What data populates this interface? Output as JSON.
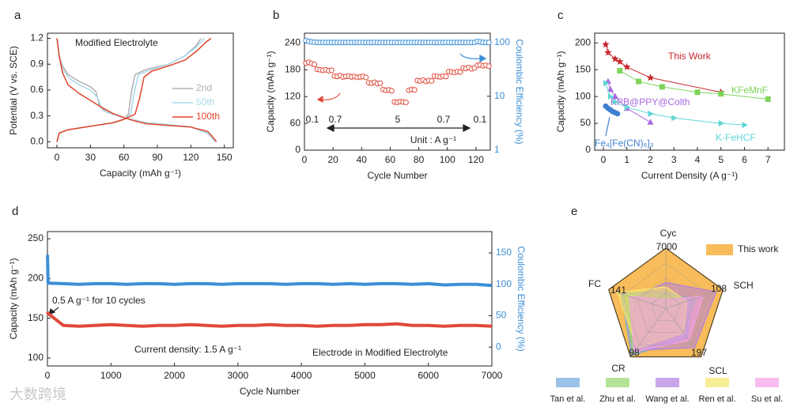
{
  "watermark": "大数跨境",
  "chart_data": [
    {
      "type": "line",
      "label": "a",
      "xlabel": "Capacity (mAh g⁻¹)",
      "ylabel": "Potential (V vs. SCE)",
      "annotations": [
        "Modified Electrolyte"
      ],
      "xlim": [
        -8.5,
        158
      ],
      "xticks": [
        0,
        30,
        60,
        90,
        120,
        150
      ],
      "ylim": [
        -0.07,
        1.26
      ],
      "yticks": [
        {
          "value": 0,
          "label": "0.0"
        },
        0.3,
        0.6,
        0.9,
        1.2
      ],
      "series": [
        {
          "name": "2nd",
          "color": "#b0b0b0",
          "x": [
            0,
            2,
            5,
            10,
            20,
            30,
            35,
            38,
            42,
            50,
            60,
            70,
            80,
            100,
            120,
            135,
            142,
            null,
            0,
            2,
            10,
            30,
            50,
            60,
            64,
            67,
            70,
            80,
            100,
            115,
            125,
            129
          ],
          "values": [
            1.2,
            1.0,
            0.88,
            0.78,
            0.7,
            0.64,
            0.58,
            0.42,
            0.36,
            0.32,
            0.28,
            0.25,
            0.22,
            0.2,
            0.17,
            0.1,
            0.0,
            null,
            0.0,
            0.1,
            0.14,
            0.18,
            0.22,
            0.26,
            0.32,
            0.6,
            0.78,
            0.84,
            0.9,
            1.0,
            1.12,
            1.2
          ]
        },
        {
          "name": "50th",
          "color": "#a8d8ea",
          "x": [
            0,
            2,
            5,
            10,
            20,
            30,
            36,
            40,
            45,
            55,
            65,
            80,
            100,
            120,
            135,
            142,
            null,
            0,
            2,
            10,
            30,
            50,
            60,
            66,
            70,
            73,
            85,
            100,
            115,
            125,
            132
          ],
          "values": [
            1.2,
            1.0,
            0.85,
            0.75,
            0.66,
            0.6,
            0.52,
            0.4,
            0.34,
            0.3,
            0.26,
            0.22,
            0.2,
            0.17,
            0.1,
            0.0,
            null,
            0.0,
            0.1,
            0.14,
            0.18,
            0.22,
            0.26,
            0.32,
            0.62,
            0.78,
            0.84,
            0.9,
            1.0,
            1.1,
            1.2
          ]
        },
        {
          "name": "100th",
          "color": "#e0442c",
          "x": [
            0,
            2,
            5,
            10,
            20,
            30,
            40,
            50,
            60,
            70,
            80,
            100,
            120,
            135,
            140,
            143,
            null,
            0,
            2,
            10,
            30,
            50,
            60,
            70,
            74,
            78,
            85,
            100,
            115,
            125,
            133,
            138
          ],
          "values": [
            1.2,
            1.0,
            0.8,
            0.66,
            0.56,
            0.48,
            0.4,
            0.33,
            0.28,
            0.24,
            0.21,
            0.19,
            0.17,
            0.12,
            0.05,
            0.0,
            null,
            0.0,
            0.1,
            0.14,
            0.18,
            0.22,
            0.26,
            0.32,
            0.5,
            0.75,
            0.82,
            0.88,
            0.95,
            1.05,
            1.15,
            1.2
          ]
        }
      ]
    },
    {
      "type": "line",
      "label": "b",
      "xlabel": "Cycle Number",
      "ylabel": "Capacity (mAh g⁻¹)",
      "y2label": "Coulombic Efficiency (%)",
      "y2_color": "#3b8fd6",
      "annotations": [
        "0.1",
        "0.7",
        "5",
        "0.7",
        "0.1",
        "Unit : A g⁻¹"
      ],
      "xlim": [
        0,
        130
      ],
      "xticks": [
        0,
        20,
        40,
        60,
        80,
        100,
        120
      ],
      "ylim": [
        0,
        262
      ],
      "yticks": [
        0,
        60,
        120,
        180,
        240
      ],
      "y2lim": [
        1,
        148
      ],
      "y2ticks": [
        1,
        10,
        100
      ],
      "y2log": true,
      "x": [
        1,
        3,
        5,
        7,
        9,
        11,
        13,
        15,
        17,
        19,
        21,
        23,
        25,
        27,
        29,
        31,
        33,
        35,
        37,
        39,
        41,
        43,
        45,
        47,
        49,
        51,
        53,
        55,
        57,
        59,
        61,
        63,
        65,
        67,
        69,
        71,
        73,
        75,
        77,
        79,
        81,
        83,
        85,
        87,
        89,
        91,
        93,
        95,
        97,
        99,
        101,
        103,
        105,
        107,
        109,
        111,
        113,
        115,
        117,
        119,
        121,
        123,
        125,
        127,
        129
      ],
      "series": [
        {
          "name": "Capacity",
          "color": "#e0493a",
          "line": false,
          "marker": "circle",
          "values": [
            195,
            197,
            194,
            192,
            181,
            180,
            179,
            180,
            178,
            179,
            166,
            165,
            167,
            164,
            165,
            166,
            164,
            165,
            163,
            164,
            165,
            163,
            151,
            150,
            152,
            149,
            150,
            136,
            134,
            135,
            133,
            108,
            107,
            109,
            108,
            107,
            134,
            136,
            135,
            156,
            155,
            157,
            154,
            156,
            155,
            166,
            165,
            164,
            166,
            165,
            176,
            175,
            174,
            176,
            175,
            184,
            183,
            185,
            182,
            184,
            190,
            191,
            189,
            190,
            188
          ]
        },
        {
          "name": "Coulombic Efficiency",
          "color": "#3b8fd6",
          "line": false,
          "marker": "circle",
          "axis": "y2",
          "values": [
            108,
            104,
            102,
            101,
            100,
            99.6,
            99.8,
            99.5,
            99.7,
            99.6,
            99.8,
            99.4,
            99.7,
            99.6,
            99.5,
            99.8,
            99.6,
            99.7,
            99.4,
            99.8,
            99.6,
            99.5,
            99.7,
            99.6,
            99.8,
            99.4,
            99.6,
            99.7,
            99.5,
            99.8,
            99.6,
            99.4,
            99.7,
            99.6,
            99.8,
            99.5,
            99.6,
            99.7,
            99.4,
            99.8,
            99.6,
            99.5,
            99.7,
            99.6,
            99.8,
            99.4,
            99.6,
            99.7,
            99.5,
            99.8,
            99.6,
            99.4,
            99.7,
            99.6,
            99.8,
            99.5,
            99.6,
            99.7,
            99.4,
            99.8,
            104,
            102,
            100,
            99.6,
            99.7
          ]
        }
      ]
    },
    {
      "type": "line",
      "label": "c",
      "xlabel": "Current Density (A g⁻¹)",
      "ylabel": "Capacity (mAh g⁻¹)",
      "xlim": [
        -0.37,
        7.7
      ],
      "xticks": [
        0,
        1,
        2,
        3,
        4,
        5,
        6,
        7
      ],
      "ylim": [
        0,
        218
      ],
      "yticks": [
        0,
        50,
        100,
        150,
        200
      ],
      "series": [
        {
          "name": "This Work",
          "color": "#c9252c",
          "marker": "star",
          "x": [
            0.1,
            0.2,
            0.5,
            0.7,
            1,
            2,
            5
          ],
          "values": [
            197,
            182,
            170,
            165,
            155,
            135,
            108
          ]
        },
        {
          "name": "KFeMnF",
          "color": "#7ed35a",
          "marker": "square",
          "x": [
            0.7,
            1.5,
            2.5,
            4,
            5,
            7
          ],
          "values": [
            148,
            128,
            118,
            108,
            105,
            95
          ]
        },
        {
          "name": "KPB@PPY@Colth",
          "color": "#a868e0",
          "marker": "triangle",
          "x": [
            0.2,
            0.3,
            0.5,
            1,
            2
          ],
          "values": [
            128,
            113,
            100,
            78,
            52
          ]
        },
        {
          "name": "K-FeHCF",
          "color": "#62d6d6",
          "marker": "triangle-right",
          "x": [
            0.1,
            0.3,
            0.5,
            1,
            2,
            3,
            5,
            6
          ],
          "values": [
            125,
            100,
            90,
            80,
            68,
            60,
            50,
            47
          ]
        },
        {
          "name": "Fe₄[Fe(CN)₆]₃",
          "color": "#3d7fd0",
          "marker": "dot",
          "x": [
            0.1,
            0.2,
            0.3,
            0.4,
            0.5,
            0.6
          ],
          "values": [
            82,
            78,
            75,
            72,
            70,
            68
          ]
        }
      ]
    },
    {
      "type": "line",
      "label": "d",
      "xlabel": "Cycle Number",
      "ylabel": "Capacity (mAh g⁻¹)",
      "y2label": "Coulombic Efficiency (%)",
      "y2_color": "#3b8fd6",
      "annotations": [
        "0.5 A g⁻¹ for 10 cycles",
        "Current density: 1.5 A g⁻¹",
        "Electrode in Modified Electrolyte"
      ],
      "xlim": [
        0,
        7000
      ],
      "xticks": [
        0,
        1000,
        2000,
        3000,
        4000,
        5000,
        6000,
        7000
      ],
      "ylim": [
        90,
        259
      ],
      "yticks": [
        100,
        150,
        200,
        250
      ],
      "y2lim": [
        -30,
        184
      ],
      "y2ticks": [
        0,
        50,
        100,
        150
      ],
      "x": [
        1,
        10,
        250,
        500,
        750,
        1000,
        1250,
        1500,
        1750,
        2000,
        2250,
        2500,
        2750,
        3000,
        3250,
        3500,
        3750,
        4000,
        4250,
        4500,
        4750,
        5000,
        5250,
        5500,
        5750,
        6000,
        6250,
        6500,
        6750,
        7000
      ],
      "series": [
        {
          "name": "Capacity",
          "color": "#e0493a",
          "values": [
            158,
            156,
            141,
            140,
            141,
            142,
            141,
            140,
            141,
            141,
            142,
            141,
            140,
            141,
            141,
            142,
            141,
            141,
            140,
            141,
            141,
            142,
            142,
            143,
            141,
            141,
            140,
            141,
            141,
            140
          ]
        },
        {
          "name": "Coulombic Efficiency",
          "color": "#3b8fd6",
          "axis": "y2",
          "values": [
            147,
            102,
            101,
            100,
            101,
            101,
            100,
            101,
            101,
            100,
            101,
            101,
            100,
            101,
            101,
            101,
            100,
            101,
            101,
            100,
            101,
            100,
            101,
            101,
            100,
            101,
            99,
            100,
            100,
            98
          ]
        }
      ]
    },
    {
      "type": "radar",
      "label": "e",
      "axes": [
        "Cyc",
        "SCH",
        "SCL",
        "CR",
        "FC"
      ],
      "axis_max": [
        7000,
        108,
        197,
        98,
        141
      ],
      "series": [
        {
          "name": "This work",
          "color": "#f5a623",
          "values": [
            7000,
            108,
            197,
            98,
            141
          ]
        },
        {
          "name": "Tan et al.",
          "color": "#6fa8dc",
          "values": [
            2000,
            50,
            120,
            95,
            110
          ]
        },
        {
          "name": "Zhu et al.",
          "color": "#93d86b",
          "values": [
            1500,
            60,
            90,
            90,
            100
          ]
        },
        {
          "name": "Wang et al.",
          "color": "#b37fe0",
          "values": [
            3000,
            95,
            160,
            85,
            80
          ]
        },
        {
          "name": "Ren et al.",
          "color": "#f5e66b",
          "values": [
            2500,
            40,
            100,
            80,
            120
          ]
        },
        {
          "name": "Su et al.",
          "color": "#f3a3e6",
          "values": [
            1000,
            70,
            130,
            88,
            90
          ]
        }
      ]
    }
  ]
}
